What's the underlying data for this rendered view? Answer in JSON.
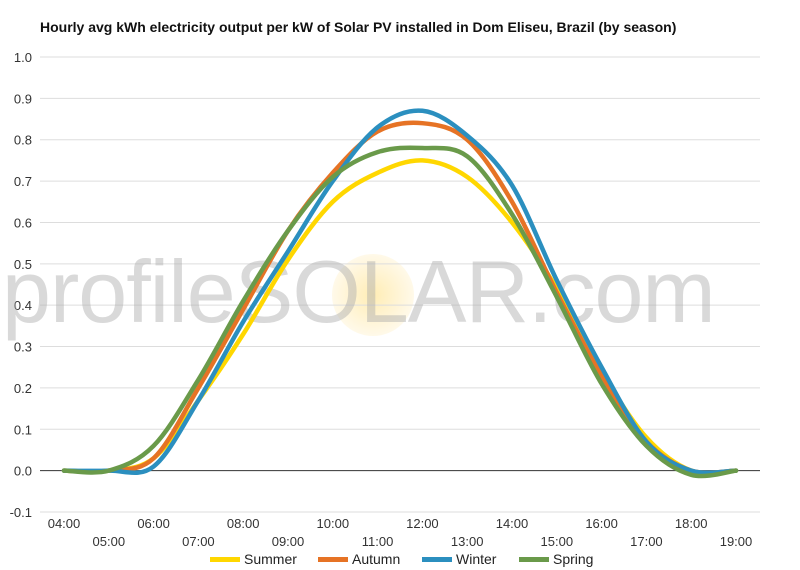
{
  "chart_data": {
    "type": "line",
    "title": "Hourly avg kWh electricity output per kW of Solar PV installed in Dom Eliseu, Brazil (by season)",
    "xlabel": "",
    "ylabel": "",
    "x": [
      "04:00",
      "05:00",
      "06:00",
      "07:00",
      "08:00",
      "09:00",
      "10:00",
      "11:00",
      "12:00",
      "13:00",
      "14:00",
      "15:00",
      "16:00",
      "17:00",
      "18:00",
      "19:00"
    ],
    "ylim": [
      -0.1,
      1.0
    ],
    "yticks": [
      "1.0",
      "0.9",
      "0.8",
      "0.7",
      "0.6",
      "0.5",
      "0.4",
      "0.3",
      "0.2",
      "0.1",
      "0.0",
      "-0.1"
    ],
    "grid": true,
    "legend_position": "bottom",
    "series": [
      {
        "name": "Summer",
        "color": "#FFD700",
        "values": [
          0.0,
          0.0,
          0.03,
          0.17,
          0.33,
          0.51,
          0.65,
          0.72,
          0.75,
          0.71,
          0.6,
          0.44,
          0.24,
          0.08,
          0.0,
          0.0
        ]
      },
      {
        "name": "Autumn",
        "color": "#E67325",
        "values": [
          0.0,
          0.0,
          0.03,
          0.2,
          0.39,
          0.58,
          0.72,
          0.82,
          0.84,
          0.8,
          0.65,
          0.43,
          0.23,
          0.07,
          0.0,
          0.0
        ]
      },
      {
        "name": "Winter",
        "color": "#2B8FBF",
        "values": [
          0.0,
          0.0,
          0.01,
          0.17,
          0.36,
          0.53,
          0.7,
          0.83,
          0.87,
          0.81,
          0.69,
          0.46,
          0.25,
          0.07,
          0.0,
          0.0
        ]
      },
      {
        "name": "Spring",
        "color": "#6A9A4A",
        "values": [
          0.0,
          0.0,
          0.06,
          0.22,
          0.41,
          0.58,
          0.71,
          0.77,
          0.78,
          0.76,
          0.62,
          0.42,
          0.21,
          0.06,
          -0.01,
          0.0
        ]
      }
    ],
    "watermark": "profileSOLAR.com"
  }
}
